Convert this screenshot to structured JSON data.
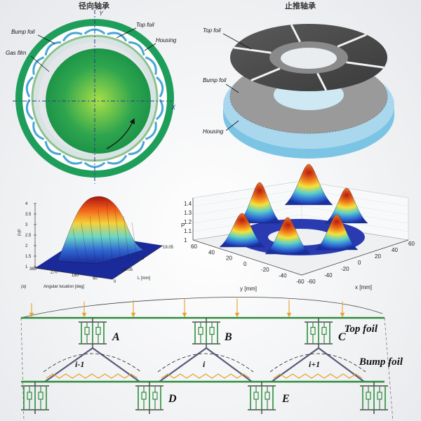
{
  "radial": {
    "title": "径向轴承",
    "labels": {
      "bump_foil": "Bump foil",
      "top_foil": "Top foil",
      "housing": "Housing",
      "gas_film": "Gas film"
    },
    "axis_y": "Y",
    "axis_x": "X"
  },
  "thrust": {
    "title": "止推轴承",
    "labels": {
      "top_foil": "Top foil",
      "bump_foil": "Bump foil",
      "housing": "Housing"
    }
  },
  "plot_left": {
    "ylabel": "P/P",
    "zticks": [
      "4",
      "3.5",
      "3",
      "2.5",
      "2",
      "1.5",
      "1"
    ],
    "xticks": [
      "360",
      "270",
      "180",
      "90",
      "0"
    ],
    "xlabel": "Angular location [deg]",
    "lticks": [
      "19.05",
      "0",
      "-19.05"
    ],
    "llabel": "L [mm]",
    "panel": "(a)"
  },
  "plot_right": {
    "ylabel": "P",
    "zticks": [
      "1.4",
      "1.3",
      "1.2",
      "1.1",
      "1"
    ],
    "xticks": [
      "60",
      "40",
      "20",
      "0",
      "-20",
      "-40",
      "-60"
    ],
    "yticks": [
      "-60",
      "-40",
      "-20",
      "0",
      "20",
      "40",
      "60"
    ],
    "xlabel": "y [mm]",
    "ylabel2": "x [mm]"
  },
  "model": {
    "top_foil": "Top foil",
    "bump_foil": "Bump foil",
    "nodes_top": [
      "A",
      "B",
      "C"
    ],
    "nodes_bottom": [
      "D",
      "E"
    ],
    "segments": [
      "i-1",
      "i",
      "i+1"
    ]
  },
  "colors": {
    "housing": "#1e9e5a",
    "bump": "#4aa6d8",
    "arrow": "#e8a030",
    "plate": "#2d8c3c",
    "spring": "#e8a030",
    "dark": "#4a4a4a",
    "base": "#a9d8ee"
  }
}
